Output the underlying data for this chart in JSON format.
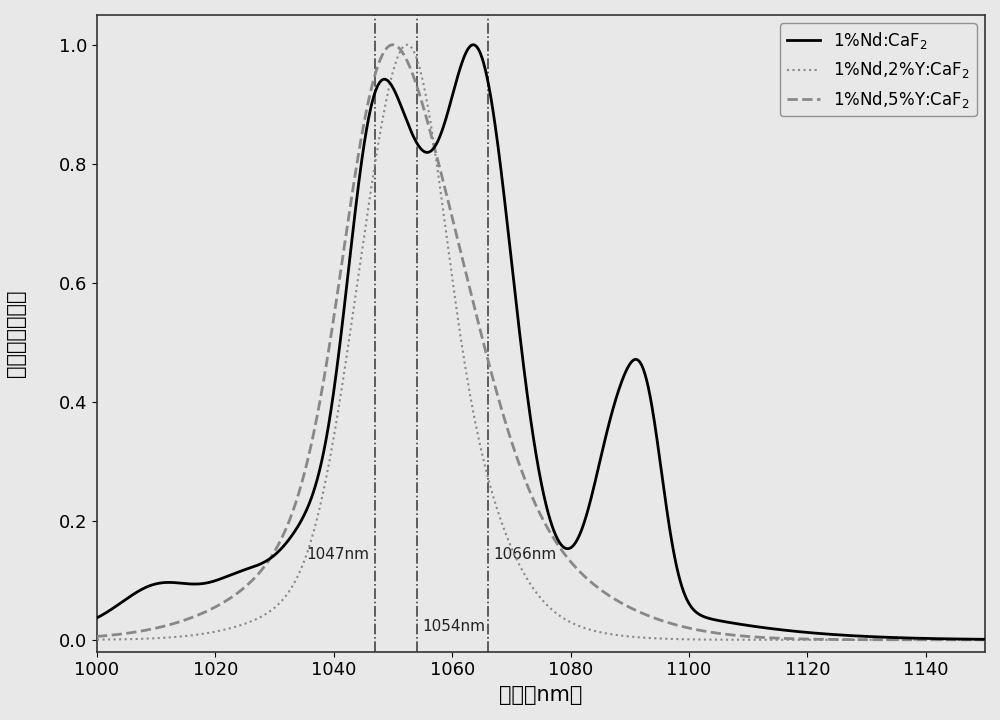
{
  "xmin": 1000,
  "xmax": 1150,
  "ymin": -0.02,
  "ymax": 1.05,
  "xlabel": "波长（nm）",
  "ylabel": "归一化发射屁谱",
  "xticks": [
    1000,
    1020,
    1040,
    1060,
    1080,
    1100,
    1120,
    1140
  ],
  "yticks": [
    0.0,
    0.2,
    0.4,
    0.6,
    0.8,
    1.0
  ],
  "vline1": 1047,
  "vline2": 1054,
  "vline3": 1066,
  "label1": "1047nm",
  "label2": "1054nm",
  "label3": "1066nm",
  "legend1": "1%Nd:CaF$_2$",
  "legend2": "1%Nd,2%Y:CaF$_2$",
  "legend3": "1%Nd,5%Y:CaF$_2$",
  "color1": "#000000",
  "color2": "#888888",
  "color3": "#888888",
  "bg_color": "#e8e8e8",
  "linewidth1": 2.0,
  "linewidth2": 1.5,
  "linewidth3": 2.0
}
